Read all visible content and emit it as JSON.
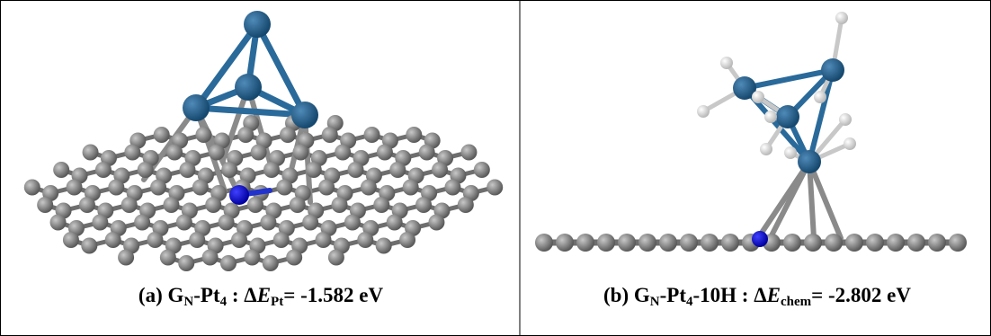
{
  "panels": [
    {
      "caption": [
        "(a) G",
        "N",
        "-Pt",
        "4",
        " : Δ",
        "E",
        "Pt",
        "= -1.582 eV"
      ]
    },
    {
      "caption": [
        "(b) G",
        "N",
        "-Pt",
        "4",
        "-10H : Δ",
        "E",
        "chem",
        "= -2.802 eV"
      ]
    }
  ]
}
